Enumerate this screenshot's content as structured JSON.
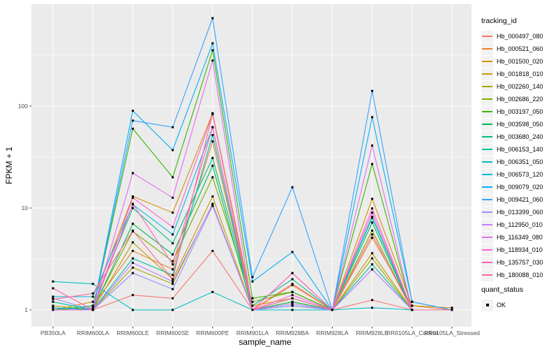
{
  "figure": {
    "panel_bg": "#EBEBEB",
    "grid_color": "#FFFFFF",
    "tick_color": "#333333",
    "axis_text_color": "#4D4D4D",
    "point_color": "#000000"
  },
  "legend": {
    "title": "tracking_id",
    "quant": {
      "title": "quant_status",
      "items": [
        {
          "label": "OK"
        }
      ]
    }
  },
  "chart_data": {
    "type": "line",
    "title": "",
    "xlabel": "sample_name",
    "ylabel": "FPKM + 1",
    "yscale": "log10",
    "ylim": [
      1,
      1000
    ],
    "grid": true,
    "legend_position": "right",
    "y_ticks": [
      {
        "label": "1",
        "value": 1
      },
      {
        "label": "10",
        "value": 10
      },
      {
        "label": "100",
        "value": 100
      }
    ],
    "y_minor_ticks": [
      3.1623,
      31.623,
      316.23
    ],
    "categories": [
      "PB350LA",
      "RRIM600LA",
      "RRIM600LE",
      "RRIM600SE",
      "RRIM600PE",
      "RRIM901LA",
      "RRIM928BA",
      "RRIM928LA",
      "RRIM928LE",
      "RRII105LA_Control",
      "RRII105LA_Stressed"
    ],
    "series": [
      {
        "name": "Hb_000497_080",
        "color": "#F8766D",
        "values": [
          1.05,
          1.0,
          1.4,
          1.3,
          3.8,
          1.0,
          1.8,
          1.0,
          1.25,
          1.0,
          1.0
        ]
      },
      {
        "name": "Hb_000521_060",
        "color": "#EA8331",
        "values": [
          1.0,
          1.1,
          3.8,
          2.5,
          45,
          1.0,
          1.75,
          1.0,
          5.1,
          1.1,
          1.0
        ]
      },
      {
        "name": "Hb_001500_020",
        "color": "#D89000",
        "values": [
          1.0,
          1.2,
          13,
          9,
          85,
          1.1,
          1.3,
          1.0,
          12.3,
          1.1,
          1.05
        ]
      },
      {
        "name": "Hb_001818_010",
        "color": "#C09B00",
        "values": [
          1.0,
          1.0,
          4.6,
          2.0,
          13,
          1.0,
          1.2,
          1.0,
          3.6,
          1.0,
          1.0
        ]
      },
      {
        "name": "Hb_002260_140",
        "color": "#A3A500",
        "values": [
          1.1,
          1.0,
          2.6,
          1.8,
          11,
          1.0,
          1.1,
          1.0,
          3.2,
          1.0,
          1.0
        ]
      },
      {
        "name": "Hb_002686_220",
        "color": "#7CAE00",
        "values": [
          1.0,
          1.05,
          5.9,
          3.0,
          20,
          1.2,
          1.5,
          1.0,
          6.0,
          1.0,
          1.0
        ]
      },
      {
        "name": "Hb_003197_050",
        "color": "#39B600",
        "values": [
          1.0,
          1.0,
          60,
          20,
          353,
          1.3,
          1.5,
          1.0,
          27,
          1.0,
          1.0
        ]
      },
      {
        "name": "Hb_003598_050",
        "color": "#00BB4E",
        "values": [
          1.0,
          1.0,
          7.0,
          3.5,
          26,
          1.0,
          1.2,
          1.0,
          7.2,
          1.0,
          1.0
        ]
      },
      {
        "name": "Hb_003680_240",
        "color": "#00BF7D",
        "values": [
          1.0,
          1.1,
          10,
          4.5,
          31,
          1.1,
          2.0,
          1.0,
          8.2,
          1.0,
          1.0
        ]
      },
      {
        "name": "Hb_006153_140",
        "color": "#00C1A3",
        "values": [
          1.2,
          1.0,
          3.2,
          2.2,
          52,
          1.0,
          1.3,
          1.0,
          2.8,
          1.0,
          1.0
        ]
      },
      {
        "name": "Hb_006351_050",
        "color": "#00BFC4",
        "values": [
          1.9,
          1.8,
          1.0,
          1.0,
          1.5,
          1.0,
          1.0,
          1.0,
          1.05,
          1.0,
          1.0
        ]
      },
      {
        "name": "Hb_006573_120",
        "color": "#00BAE0",
        "values": [
          1.35,
          1.35,
          10.8,
          5.5,
          62,
          1.0,
          1.1,
          1.0,
          8.0,
          1.0,
          1.0
        ]
      },
      {
        "name": "Hb_009079_020",
        "color": "#00B0F6",
        "values": [
          1.05,
          1.0,
          90,
          37,
          413,
          1.9,
          3.7,
          1.0,
          78,
          1.2,
          1.0
        ]
      },
      {
        "name": "Hb_009421_060",
        "color": "#35A2FF",
        "values": [
          1.0,
          1.0,
          72,
          62,
          730,
          2.1,
          16,
          1.0,
          141,
          1.2,
          1.0
        ]
      },
      {
        "name": "Hb_013399_060",
        "color": "#9590FF",
        "values": [
          1.3,
          1.0,
          2.3,
          1.6,
          10.5,
          1.0,
          1.1,
          1.0,
          2.5,
          1.0,
          1.0
        ]
      },
      {
        "name": "Hb_112950_010",
        "color": "#C77CFF",
        "values": [
          1.0,
          1.0,
          2.9,
          1.9,
          10.8,
          1.0,
          1.15,
          1.0,
          2.5,
          1.0,
          1.0
        ]
      },
      {
        "name": "Hb_116349_080",
        "color": "#E76BF3",
        "values": [
          1.0,
          1.0,
          22,
          12.6,
          280,
          1.0,
          2.3,
          1.0,
          41,
          1.0,
          1.0
        ]
      },
      {
        "name": "Hb_118934_010",
        "color": "#FA62DB",
        "values": [
          1.0,
          1.0,
          12.6,
          6.5,
          83,
          1.0,
          1.4,
          1.0,
          9.9,
          1.0,
          1.0
        ]
      },
      {
        "name": "Hb_135757_030",
        "color": "#FF62BC",
        "values": [
          1.63,
          1.0,
          11,
          2.8,
          62,
          1.0,
          2.3,
          1.0,
          9.0,
          1.0,
          1.0
        ]
      },
      {
        "name": "Hb_180088_010",
        "color": "#FF6A98",
        "values": [
          1.27,
          1.45,
          6.0,
          2.0,
          85,
          1.0,
          1.3,
          1.0,
          5.5,
          1.0,
          1.0
        ]
      }
    ]
  }
}
